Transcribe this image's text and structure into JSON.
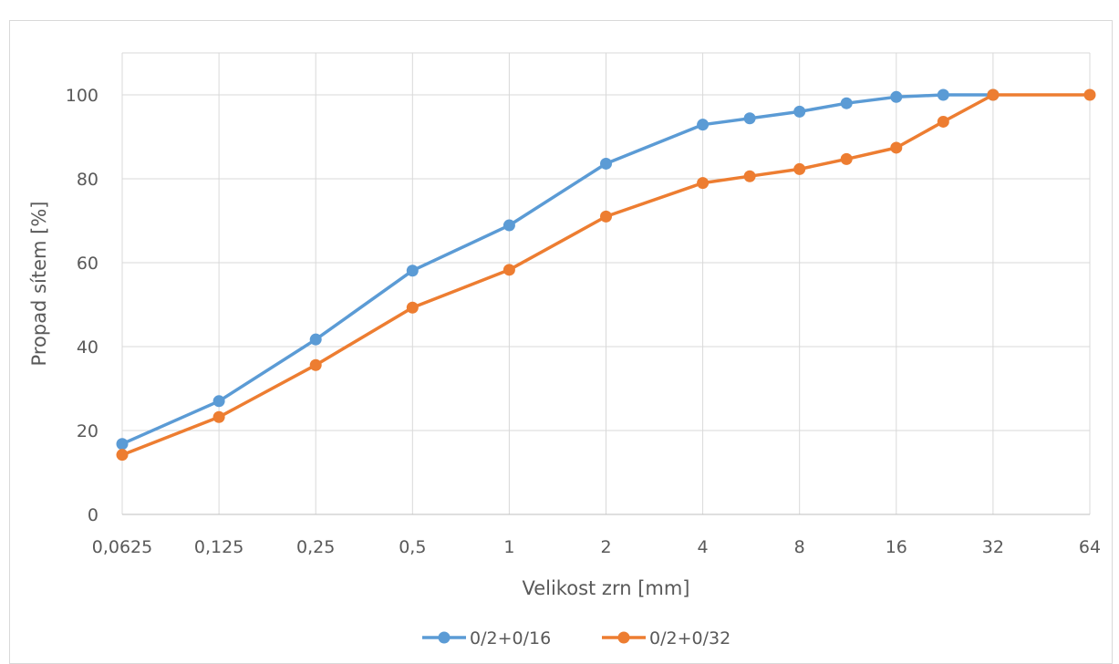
{
  "chart_data": {
    "type": "line",
    "title": "",
    "xlabel": "Velikost zrn [mm]",
    "ylabel": "Propad sítem [%]",
    "x_scale": "log2",
    "x_ticks": [
      "0,0625",
      "0,125",
      "0,25",
      "0,5",
      "1",
      "2",
      "4",
      "8",
      "16",
      "32",
      "64"
    ],
    "ylim": [
      0,
      110
    ],
    "y_ticks": [
      0,
      20,
      40,
      60,
      80,
      100
    ],
    "grid": true,
    "legend_position": "bottom",
    "series": [
      {
        "name": "0/2+0/16",
        "color": "#5b9bd5",
        "x": [
          0.0625,
          0.125,
          0.25,
          0.5,
          1,
          2,
          4,
          5.6,
          8,
          11.2,
          16,
          22.4,
          32
        ],
        "y": [
          16.8,
          27,
          41.7,
          58.1,
          68.9,
          83.6,
          92.9,
          94.4,
          96,
          98,
          99.5,
          100,
          100
        ]
      },
      {
        "name": "0/2+0/32",
        "color": "#ed7d31",
        "x": [
          0.0625,
          0.125,
          0.25,
          0.5,
          1,
          2,
          4,
          5.6,
          8,
          11.2,
          16,
          22.4,
          32,
          64
        ],
        "y": [
          14.2,
          23.2,
          35.6,
          49.3,
          58.3,
          71,
          79,
          80.6,
          82.3,
          84.7,
          87.4,
          93.6,
          100,
          100
        ]
      }
    ]
  }
}
